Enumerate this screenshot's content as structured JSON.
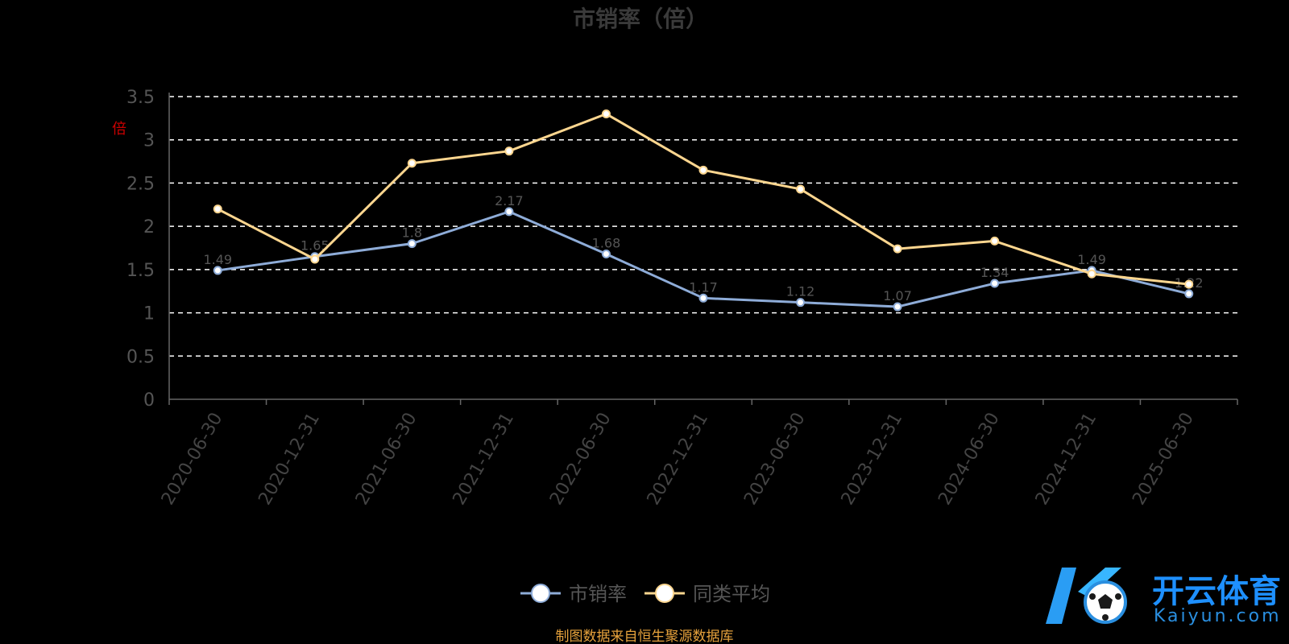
{
  "chart_data": {
    "type": "line",
    "title": "市销率（倍）",
    "ylabel": "倍",
    "ylim": [
      0,
      3.5
    ],
    "yticks": [
      0,
      0.5,
      1,
      1.5,
      2,
      2.5,
      3,
      3.5
    ],
    "categories": [
      "2020-06-30",
      "2020-12-31",
      "2021-06-30",
      "2021-12-31",
      "2022-06-30",
      "2022-12-31",
      "2023-06-30",
      "2023-12-31",
      "2024-06-30",
      "2024-12-31",
      "2025-06-30"
    ],
    "series": [
      {
        "name": "市销率",
        "color": "#8eacd8",
        "values": [
          1.49,
          1.65,
          1.8,
          2.17,
          1.68,
          1.17,
          1.12,
          1.07,
          1.34,
          1.49,
          1.22
        ]
      },
      {
        "name": "同类平均",
        "color": "#fdd68f",
        "values": [
          2.2,
          1.62,
          2.73,
          2.87,
          3.3,
          2.65,
          2.43,
          1.74,
          1.83,
          1.45,
          1.33
        ]
      }
    ],
    "grid": true,
    "legend": "bottom-center"
  },
  "source_note": "制图数据来自恒生聚源数据库",
  "watermark": {
    "cn": "开云体育",
    "en": "Kaiyun.com",
    "logo_icon": "k-soccer-ball-logo"
  }
}
